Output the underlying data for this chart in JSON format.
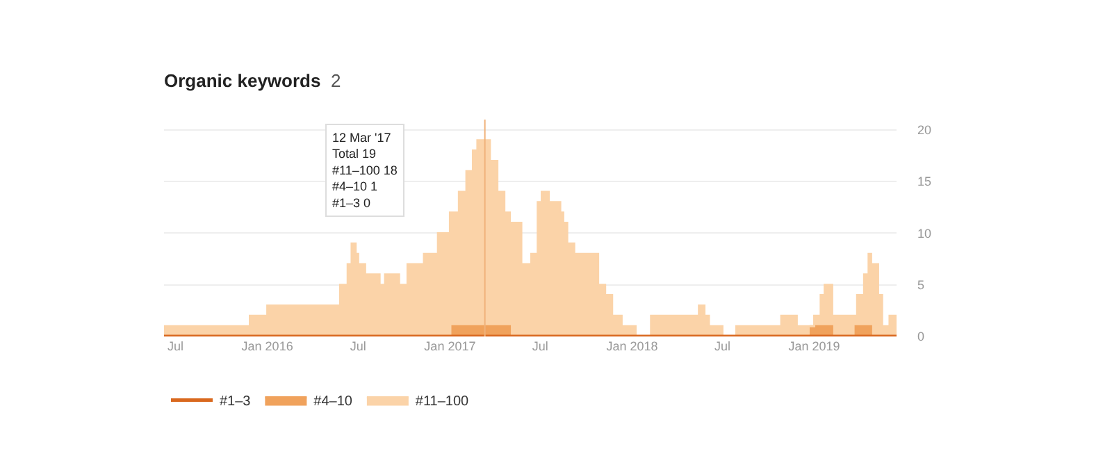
{
  "chart_data": {
    "type": "area",
    "stacked": true,
    "line_style": "solid",
    "marker": "none",
    "title": "Organic keywords",
    "subtitle": "2",
    "x": [
      "2015-06-08",
      "2015-11-27",
      "2016-01-01",
      "2016-05-26",
      "2016-06-10",
      "2016-06-18",
      "2016-06-26",
      "2016-07-01",
      "2016-07-15",
      "2016-08-13",
      "2016-08-24",
      "2016-09-21",
      "2016-10-08",
      "2016-11-10",
      "2016-12-08",
      "2017-01-01",
      "2017-01-06",
      "2017-01-19",
      "2017-02-03",
      "2017-02-16",
      "2017-02-25",
      "2017-03-22",
      "2017-04-06",
      "2017-04-20",
      "2017-05-01",
      "2017-05-24",
      "2017-06-13",
      "2017-06-26",
      "2017-07-04",
      "2017-07-18",
      "2017-08-10",
      "2017-08-16",
      "2017-08-24",
      "2017-09-07",
      "2017-10-25",
      "2017-11-08",
      "2017-11-22",
      "2017-12-11",
      "2018-01-08",
      "2018-02-08",
      "2018-05-15",
      "2018-05-26",
      "2018-06-04",
      "2018-07-01",
      "2018-07-29",
      "2018-10-27",
      "2018-11-27",
      "2018-12-25",
      "2019-01-01",
      "2019-01-14",
      "2019-01-22",
      "2019-02-06",
      "2019-03-25",
      "2019-03-28",
      "2019-04-11",
      "2019-04-20",
      "2019-04-25",
      "2019-05-09",
      "2019-05-17",
      "2019-06-01",
      "2019-06-15"
    ],
    "series": [
      {
        "name": "#1–3",
        "color": "#d9681e",
        "type": "step",
        "values": [
          0,
          0,
          0,
          0,
          0,
          0,
          0,
          0,
          0,
          0,
          0,
          0,
          0,
          0,
          0,
          0,
          0,
          0,
          0,
          0,
          0,
          0,
          0,
          0,
          0,
          0,
          0,
          0,
          0,
          0,
          0,
          0,
          0,
          0,
          0,
          0,
          0,
          0,
          0,
          0,
          0,
          0,
          0,
          0,
          0,
          0,
          0,
          0,
          0,
          0,
          0,
          0,
          0,
          0,
          0,
          0,
          0,
          0,
          0,
          0,
          0
        ]
      },
      {
        "name": "#4–10",
        "color": "#f0a25c",
        "values": [
          0,
          0,
          0,
          0,
          0,
          0,
          0,
          0,
          0,
          0,
          0,
          0,
          0,
          0,
          0,
          0,
          1,
          1,
          1,
          1,
          1,
          1,
          1,
          1,
          0,
          0,
          0,
          0,
          0,
          0,
          0,
          0,
          0,
          0,
          0,
          0,
          0,
          0,
          0,
          0,
          0,
          0,
          0,
          0,
          0,
          0,
          0,
          1,
          1,
          1,
          1,
          0,
          1,
          1,
          1,
          1,
          0,
          0,
          0,
          0,
          0
        ]
      },
      {
        "name": "#11–100",
        "color": "#fbd3a8",
        "values": [
          1,
          2,
          3,
          5,
          7,
          9,
          8,
          7,
          6,
          5,
          6,
          5,
          7,
          8,
          10,
          12,
          11,
          13,
          15,
          17,
          18,
          16,
          13,
          11,
          11,
          7,
          8,
          13,
          14,
          13,
          12,
          11,
          9,
          8,
          5,
          4,
          2,
          1,
          0,
          2,
          3,
          2,
          1,
          0,
          1,
          2,
          1,
          0,
          1,
          3,
          4,
          2,
          1,
          3,
          5,
          7,
          7,
          4,
          1,
          2,
          2
        ]
      }
    ],
    "xlim": [
      "2015-06-08",
      "2019-06-15"
    ],
    "xticks": [
      {
        "value": "2015-07-01",
        "label": "Jul"
      },
      {
        "value": "2016-01-01",
        "label": "Jan 2016"
      },
      {
        "value": "2016-07-01",
        "label": "Jul"
      },
      {
        "value": "2017-01-01",
        "label": "Jan 2017"
      },
      {
        "value": "2017-07-01",
        "label": "Jul"
      },
      {
        "value": "2018-01-01",
        "label": "Jan 2018"
      },
      {
        "value": "2018-07-01",
        "label": "Jul"
      },
      {
        "value": "2019-01-01",
        "label": "Jan 2019"
      }
    ],
    "ylim": [
      0,
      21
    ],
    "yticks": [
      0,
      5,
      10,
      15,
      20
    ],
    "grid": "y",
    "legend": "bottom left",
    "ref_lines": [
      {
        "axis": "x",
        "value": "2017-03-12",
        "label": null,
        "color": "#f0b27a"
      }
    ],
    "annotations": [
      "12 Mar '17\nTotal 19\n#11–100 18\n#4–10 1\n#1–3 0"
    ]
  }
}
